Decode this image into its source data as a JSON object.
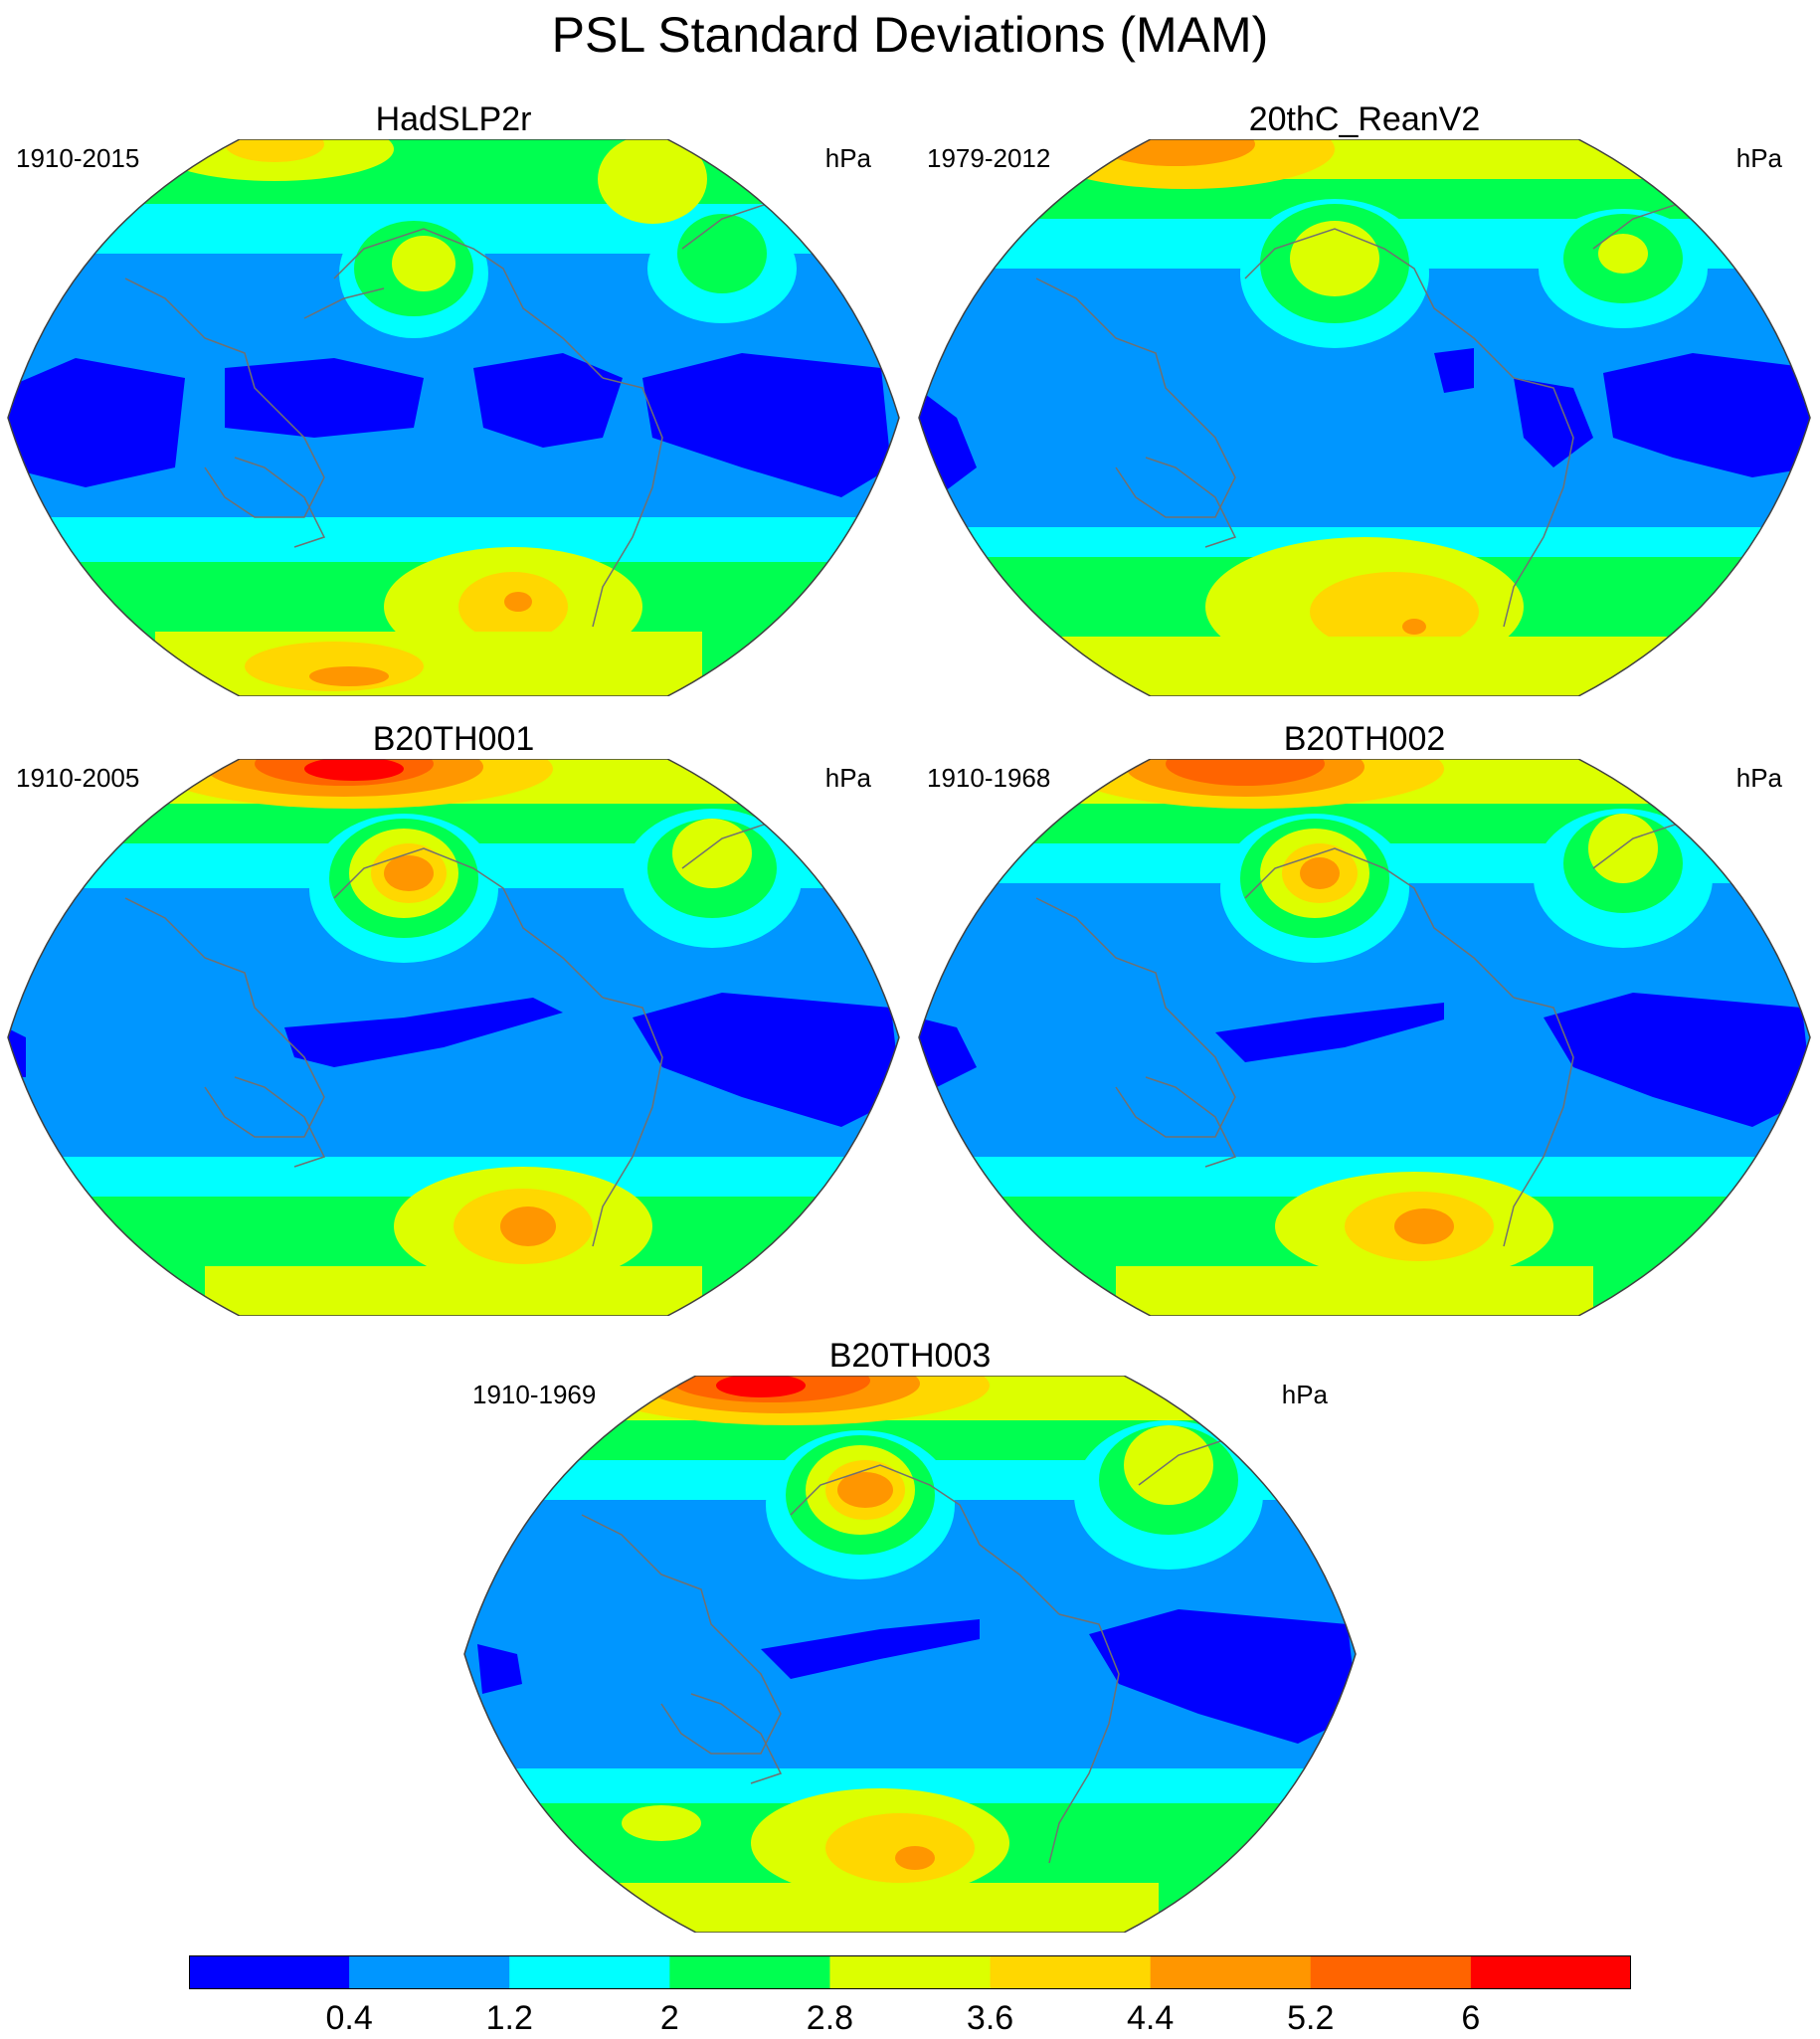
{
  "title": "PSL Standard Deviations (MAM)",
  "colors": {
    "levels": [
      "#0000ff",
      "#0096ff",
      "#00ffff",
      "#00ff50",
      "#dcff00",
      "#ffd700",
      "#ff9600",
      "#ff6400",
      "#ff0000"
    ],
    "coast": "#707070",
    "frame": "#404040"
  },
  "panels": [
    {
      "title": "HadSLP2r",
      "period": "1910-2015",
      "unit": "hPa"
    },
    {
      "title": "20thC_ReanV2",
      "period": "1979-2012",
      "unit": "hPa"
    },
    {
      "title": "B20TH001",
      "period": "1910-2005",
      "unit": "hPa"
    },
    {
      "title": "B20TH002",
      "period": "1910-1968",
      "unit": "hPa"
    },
    {
      "title": "B20TH003",
      "period": "1910-1969",
      "unit": "hPa"
    }
  ],
  "colorbar": {
    "labels": [
      "0.4",
      "1.2",
      "2",
      "2.8",
      "3.6",
      "4.4",
      "5.2",
      "6"
    ]
  }
}
